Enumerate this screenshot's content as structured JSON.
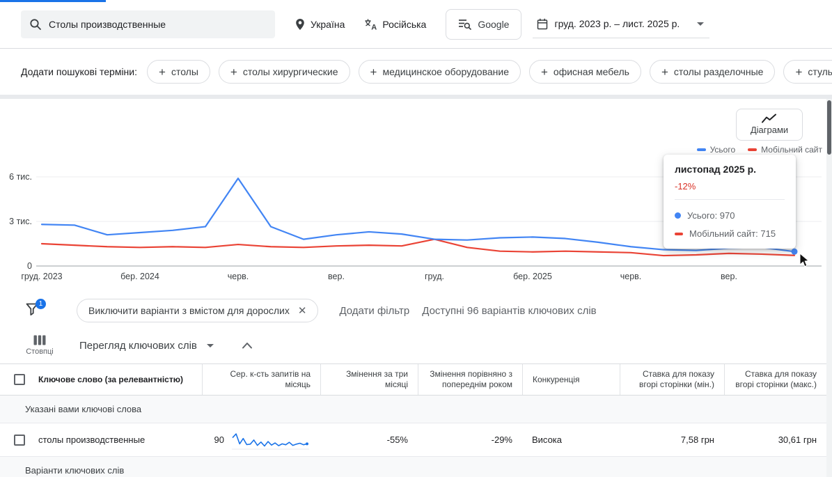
{
  "header": {
    "search_value": "Столы производственные",
    "location": "Україна",
    "language": "Російська",
    "network": "Google",
    "date_range": "груд. 2023 р. – лист. 2025 р."
  },
  "terms_bar": {
    "label": "Додати пошукові терміни:",
    "chips": [
      "столы",
      "столы хирургические",
      "медицинское оборудование",
      "офисная мебель",
      "столы разделочные",
      "стулья производственные"
    ]
  },
  "chart_panel": {
    "diagrams_label": "Діаграми",
    "legend": [
      {
        "label": "Усього",
        "color": "#4285f4"
      },
      {
        "label": "Мобільний сайт",
        "color": "#ea4335"
      }
    ],
    "tooltip": {
      "title": "листопад 2025 р.",
      "delta": "-12%",
      "rows": [
        {
          "label": "Усього: 970",
          "color": "#4285f4"
        },
        {
          "label": "Мобільний сайт: 715",
          "color": "#ea4335"
        }
      ]
    }
  },
  "chart_data": {
    "type": "line",
    "title": "",
    "xlabel": "",
    "ylabel": "",
    "ylim": [
      0,
      6000
    ],
    "grid": true,
    "legend_position": "top-right",
    "yticks": [
      {
        "value": 0,
        "label": "0"
      },
      {
        "value": 3000,
        "label": "3 тис."
      },
      {
        "value": 6000,
        "label": "6 тис."
      }
    ],
    "x_tick_labels": [
      {
        "index": 0,
        "label": "груд. 2023"
      },
      {
        "index": 3,
        "label": "бер. 2024"
      },
      {
        "index": 6,
        "label": "черв."
      },
      {
        "index": 9,
        "label": "вер."
      },
      {
        "index": 12,
        "label": "груд."
      },
      {
        "index": 15,
        "label": "бер. 2025"
      },
      {
        "index": 18,
        "label": "черв."
      },
      {
        "index": 21,
        "label": "вер."
      }
    ],
    "series": [
      {
        "name": "Усього",
        "color": "#4285f4",
        "values": [
          2800,
          2750,
          2100,
          2250,
          2400,
          2650,
          5900,
          2650,
          1800,
          2100,
          2300,
          2150,
          1800,
          1750,
          1900,
          1950,
          1850,
          1600,
          1300,
          1100,
          1050,
          1200,
          1250,
          970
        ]
      },
      {
        "name": "Мобільний сайт",
        "color": "#ea4335",
        "values": [
          1500,
          1400,
          1300,
          1250,
          1300,
          1250,
          1450,
          1300,
          1250,
          1350,
          1400,
          1350,
          1800,
          1250,
          1000,
          950,
          1000,
          950,
          900,
          700,
          750,
          850,
          800,
          715
        ]
      }
    ]
  },
  "filter_bar": {
    "filter_count_badge": "1",
    "active_filter_chip": "Виключити варіанти з вмістом для дорослих",
    "add_filter_label": "Додати фільтр",
    "available_text": "Доступні 96 варіантів ключових слів"
  },
  "columns_bar": {
    "columns_label": "Стовпці",
    "view_label": "Перегляд ключових слів"
  },
  "table": {
    "headers": [
      "Ключове слово (за релевантністю)",
      "Сер. к-сть запитів на місяць",
      "Змінення за три місяці",
      "Змінення порівняно з попереднім роком",
      "Конкуренція",
      "Ставка для показу вгорі сторінки (мін.)",
      "Ставка для показу вгорі сторінки (макс.)"
    ],
    "section_keywords_provided": "Указані вами ключові слова",
    "rows": [
      {
        "keyword": "столы производственные",
        "avg_monthly_searches": "90",
        "sparkline": [
          70,
          95,
          30,
          65,
          25,
          28,
          55,
          20,
          42,
          16,
          45,
          22,
          36,
          18,
          30,
          24,
          40,
          20,
          28,
          34,
          24,
          30
        ],
        "three_month_change": "-55%",
        "yoy_change": "-29%",
        "competition": "Висока",
        "top_of_page_bid_low": "7,58 грн",
        "top_of_page_bid_high": "30,61 грн"
      }
    ],
    "section_keyword_ideas": "Варіанти ключових слів"
  }
}
